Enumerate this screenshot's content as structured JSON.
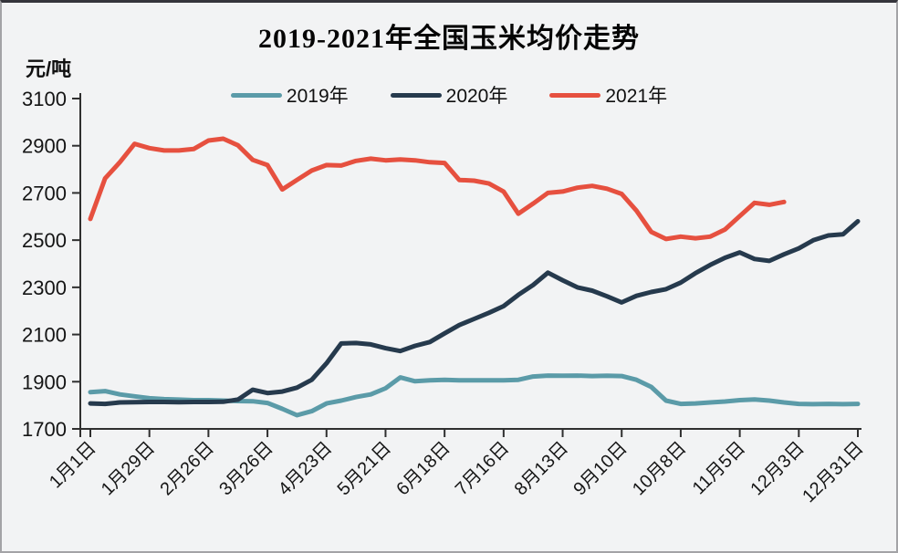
{
  "window": {
    "background": "#f2f3f4"
  },
  "chart_data": {
    "type": "line",
    "title": "2019-2021年全国玉米均价走势",
    "ylabel": "元/吨",
    "xlabel": "",
    "ylim": [
      1700,
      3100
    ],
    "y_ticks": [
      3100,
      2900,
      2700,
      2500,
      2300,
      2100,
      1900,
      1700
    ],
    "x_tick_labels": [
      "1月1日",
      "1月29日",
      "2月26日",
      "3月26日",
      "4月23日",
      "5月21日",
      "6月18日",
      "7月16日",
      "8月13日",
      "9月10日",
      "10月8日",
      "11月5日",
      "12月3日",
      "12月31日"
    ],
    "points_per_tick": 4,
    "x_resolution": "weekly",
    "grid": false,
    "legend_position": "top",
    "axis_color": "#2f2f2f",
    "series": [
      {
        "name": "2019年",
        "color": "#5B9BA8",
        "values": [
          1856,
          1860,
          1846,
          1838,
          1830,
          1826,
          1824,
          1822,
          1822,
          1820,
          1818,
          1817,
          1810,
          1785,
          1758,
          1775,
          1808,
          1820,
          1835,
          1846,
          1872,
          1918,
          1902,
          1906,
          1908,
          1906,
          1906,
          1906,
          1906,
          1908,
          1922,
          1926,
          1925,
          1926,
          1924,
          1925,
          1924,
          1908,
          1878,
          1820,
          1806,
          1808,
          1812,
          1816,
          1822,
          1825,
          1820,
          1812,
          1806,
          1805,
          1806,
          1805,
          1806
        ]
      },
      {
        "name": "2020年",
        "color": "#263A4D",
        "values": [
          1808,
          1806,
          1812,
          1813,
          1814,
          1814,
          1813,
          1814,
          1814,
          1815,
          1824,
          1866,
          1852,
          1858,
          1875,
          1908,
          1978,
          2062,
          2064,
          2058,
          2042,
          2030,
          2052,
          2068,
          2105,
          2140,
          2166,
          2192,
          2220,
          2268,
          2310,
          2362,
          2330,
          2300,
          2286,
          2262,
          2236,
          2264,
          2280,
          2292,
          2320,
          2360,
          2395,
          2425,
          2448,
          2420,
          2412,
          2440,
          2465,
          2500,
          2520,
          2525,
          2580
        ]
      },
      {
        "name": "2021年",
        "color": "#E6503F",
        "values": [
          2590,
          2762,
          2830,
          2908,
          2890,
          2880,
          2880,
          2886,
          2922,
          2930,
          2902,
          2840,
          2818,
          2715,
          2755,
          2795,
          2818,
          2816,
          2836,
          2845,
          2838,
          2842,
          2838,
          2830,
          2827,
          2755,
          2752,
          2740,
          2706,
          2612,
          2655,
          2700,
          2706,
          2722,
          2730,
          2718,
          2696,
          2625,
          2535,
          2505,
          2515,
          2508,
          2515,
          2545,
          2602,
          2658,
          2650,
          2662
        ]
      }
    ]
  }
}
